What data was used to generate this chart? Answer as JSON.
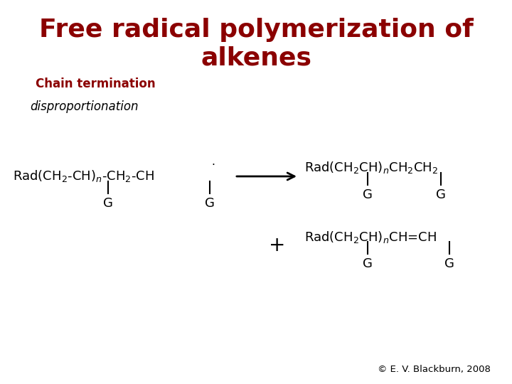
{
  "title_line1": "Free radical polymerization of",
  "title_line2": "alkenes",
  "title_color": "#8B0000",
  "title_fontsize": 26,
  "subtitle": "Chain termination",
  "subtitle_color": "#8B0000",
  "subtitle_fontsize": 12,
  "subtitle_bold": true,
  "label_disproportionation": "disproportionation",
  "label_disproportionation_fontsize": 12,
  "copyright": "© E. V. Blackburn, 2008",
  "background_color": "#ffffff",
  "text_color": "#000000",
  "chem_fontsize": 13
}
